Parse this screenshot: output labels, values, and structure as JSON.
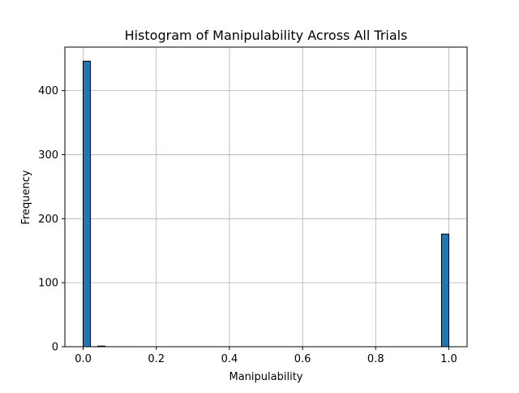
{
  "chart_data": {
    "type": "bar",
    "title": "Histogram of Manipulability Across All Trials",
    "xlabel": "Manipulability",
    "ylabel": "Frequency",
    "bins": 50,
    "bin_range": [
      0.0,
      1.0
    ],
    "xlim": [
      -0.05,
      1.05
    ],
    "ylim": [
      0,
      468
    ],
    "xticks": [
      0.0,
      0.2,
      0.4,
      0.6,
      0.8,
      1.0
    ],
    "xtick_labels": [
      "0.0",
      "0.2",
      "0.4",
      "0.6",
      "0.8",
      "1.0"
    ],
    "yticks": [
      0,
      100,
      200,
      300,
      400
    ],
    "ytick_labels": [
      "0",
      "100",
      "200",
      "300",
      "400"
    ],
    "bars": [
      {
        "x0": 0.0,
        "x1": 0.02,
        "value": 446
      },
      {
        "x0": 0.04,
        "x1": 0.06,
        "value": 1
      },
      {
        "x0": 0.98,
        "x1": 1.0,
        "value": 176
      }
    ],
    "grid": true,
    "bar_color": "#1f77b4",
    "edge_color": "#000000"
  }
}
